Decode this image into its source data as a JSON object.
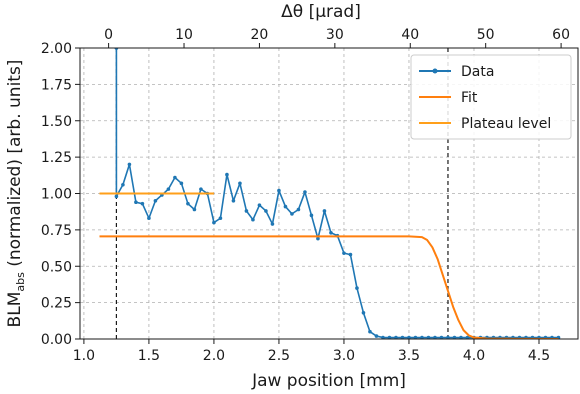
{
  "chart_data": {
    "type": "line",
    "xlabel": "Jaw position [mm]",
    "ylabel_main": "BLM",
    "ylabel_sub": "abs",
    "ylabel_rest": " (normalized) [arb. units]",
    "top_xlabel": "Δθ [μrad]",
    "xlim": [
      0.97,
      4.8
    ],
    "ylim": [
      0.0,
      2.0
    ],
    "xticks": [
      1.0,
      1.5,
      2.0,
      2.5,
      3.0,
      3.5,
      4.0,
      4.5
    ],
    "xtick_labels": [
      "1.0",
      "1.5",
      "2.0",
      "2.5",
      "3.0",
      "3.5",
      "4.0",
      "4.5"
    ],
    "yticks": [
      0.0,
      0.25,
      0.5,
      0.75,
      1.0,
      1.25,
      1.5,
      1.75,
      2.0
    ],
    "ytick_labels": [
      "0.00",
      "0.25",
      "0.50",
      "0.75",
      "1.00",
      "1.25",
      "1.50",
      "1.75",
      "2.00"
    ],
    "top_axis": {
      "ticks": [
        0,
        10,
        20,
        30,
        40,
        50,
        60
      ],
      "tick_labels": [
        "0",
        "10",
        "20",
        "30",
        "40",
        "50",
        "60"
      ],
      "jaw_position_at_0_urad": 1.19,
      "jaw_position_per_urad": 0.058
    },
    "grid": true,
    "legend_position": "top-right",
    "vlines": [
      1.25,
      3.8
    ],
    "series": [
      {
        "name": "Data",
        "color": "#1f77b4",
        "style": "line-marker",
        "x": [
          1.25,
          1.25,
          1.25,
          1.3,
          1.35,
          1.4,
          1.45,
          1.5,
          1.55,
          1.6,
          1.65,
          1.7,
          1.75,
          1.8,
          1.85,
          1.9,
          1.95,
          2.0,
          2.05,
          2.1,
          2.15,
          2.2,
          2.25,
          2.3,
          2.35,
          2.4,
          2.45,
          2.5,
          2.55,
          2.6,
          2.65,
          2.7,
          2.75,
          2.8,
          2.85,
          2.9,
          2.95,
          3.0,
          3.05,
          3.1,
          3.15,
          3.2,
          3.25,
          3.3,
          3.35,
          3.4,
          3.45,
          3.5,
          3.55,
          3.6,
          3.65,
          3.7,
          3.75,
          3.8,
          3.85,
          3.9,
          3.95,
          4.0,
          4.05,
          4.1,
          4.15,
          4.2,
          4.25,
          4.3,
          4.35,
          4.4,
          4.45,
          4.5,
          4.55,
          4.6,
          4.65
        ],
        "y": [
          2.0,
          2.0,
          0.98,
          1.06,
          1.2,
          0.94,
          0.93,
          0.83,
          0.95,
          0.99,
          1.03,
          1.11,
          1.07,
          0.93,
          0.89,
          1.03,
          1.0,
          0.8,
          0.83,
          1.13,
          0.95,
          1.07,
          0.88,
          0.82,
          0.92,
          0.88,
          0.79,
          1.02,
          0.91,
          0.86,
          0.89,
          1.01,
          0.85,
          0.69,
          0.88,
          0.73,
          0.71,
          0.59,
          0.58,
          0.35,
          0.18,
          0.05,
          0.02,
          0.01,
          0.01,
          0.01,
          0.01,
          0.01,
          0.01,
          0.01,
          0.01,
          0.01,
          0.01,
          0.01,
          0.01,
          0.01,
          0.01,
          0.01,
          0.01,
          0.01,
          0.01,
          0.01,
          0.01,
          0.01,
          0.01,
          0.01,
          0.01,
          0.01,
          0.01,
          0.01,
          0.01
        ]
      },
      {
        "name": "Fit",
        "color": "#ff7f0e",
        "style": "line",
        "x": [
          1.12,
          3.5,
          3.6,
          3.64,
          3.68,
          3.72,
          3.76,
          3.8,
          3.84,
          3.88,
          3.92,
          3.96,
          4.0,
          4.1,
          4.3,
          4.65
        ],
        "y": [
          0.705,
          0.705,
          0.7,
          0.68,
          0.63,
          0.55,
          0.44,
          0.33,
          0.22,
          0.13,
          0.06,
          0.025,
          0.01,
          0.003,
          0.001,
          0.0
        ]
      },
      {
        "name": "Plateau level",
        "color": "#ff9f1a",
        "style": "line",
        "x": [
          1.12,
          2.0
        ],
        "y": [
          1.0,
          1.0
        ]
      }
    ]
  }
}
